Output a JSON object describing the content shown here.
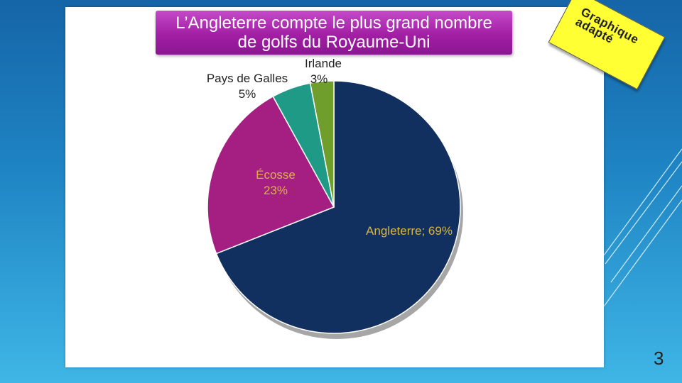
{
  "slide": {
    "title_line1": "L’Angleterre compte le plus grand nombre",
    "title_line2": "de golfs du Royaume-Uni",
    "sticker_text": "Graphique\nadapté",
    "page_number": "3"
  },
  "chart_data": {
    "type": "pie",
    "title": "L’Angleterre compte le plus grand nombre de golfs du Royaume-Uni",
    "slices": [
      {
        "name": "Angleterre",
        "label": "Angleterre; 69%",
        "value": 69,
        "color": "#12305f",
        "text_color": "#d9b53c"
      },
      {
        "name": "Écosse",
        "label_line1": "Écosse",
        "label_line2": "23%",
        "value": 23,
        "color": "#a51f83",
        "text_color": "#d9b53c"
      },
      {
        "name": "Pays de Galles",
        "label_line1": "Pays de Galles",
        "label_line2": "5%",
        "value": 5,
        "color": "#1f9a86",
        "text_color": "#222222"
      },
      {
        "name": "Irlande",
        "label_line1": "Irlande",
        "label_line2": "3%",
        "value": 3,
        "color": "#6f9e2d",
        "text_color": "#222222"
      }
    ]
  }
}
